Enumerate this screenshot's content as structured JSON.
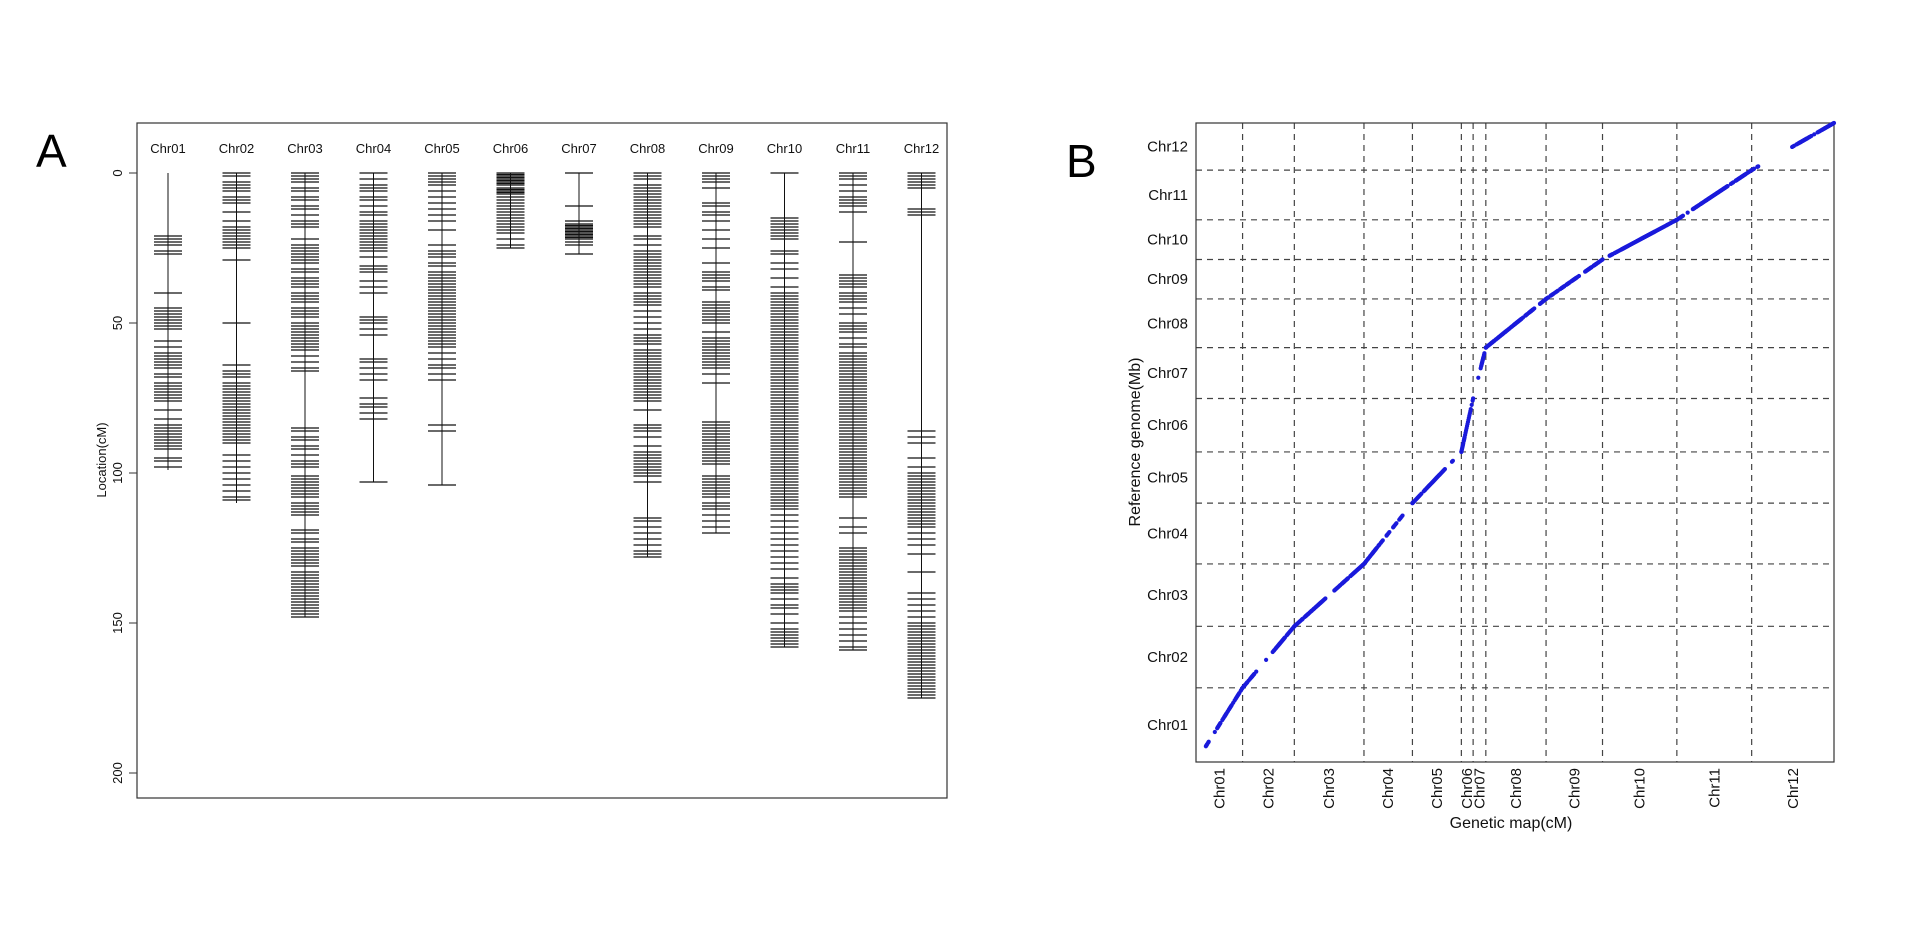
{
  "panels": {
    "a": "A",
    "b": "B"
  },
  "chart_data": [
    {
      "type": "linkage_map",
      "title": "",
      "ylabel": "Location(cM)",
      "ylim": [
        0,
        208
      ],
      "y_ticks": [
        0,
        50,
        100,
        150,
        200
      ],
      "y_inverted": true,
      "chromosomes": [
        {
          "name": "Chr01",
          "length": 99,
          "markers": [
            21,
            22,
            23,
            24,
            26,
            27,
            40,
            45,
            46,
            47,
            48,
            49,
            50,
            51,
            52,
            56,
            58,
            60,
            61,
            62,
            63,
            64,
            65,
            67,
            68,
            70,
            71,
            72,
            73,
            74,
            75,
            76,
            79,
            82,
            84,
            85,
            86,
            87,
            88,
            89,
            90,
            91,
            92,
            95,
            96,
            98
          ]
        },
        {
          "name": "Chr02",
          "length": 110,
          "markers": [
            0,
            1,
            3,
            4,
            5,
            6,
            8,
            9,
            10,
            13,
            16,
            18,
            19,
            20,
            21,
            22,
            23,
            24,
            25,
            29,
            50,
            64,
            66,
            67,
            68,
            70,
            71,
            72,
            73,
            74,
            75,
            76,
            77,
            78,
            79,
            80,
            81,
            82,
            83,
            84,
            85,
            86,
            87,
            88,
            89,
            90,
            94,
            96,
            98,
            100,
            102,
            104,
            106,
            108,
            109
          ]
        },
        {
          "name": "Chr03",
          "length": 148,
          "markers": [
            0,
            1,
            2,
            3,
            5,
            6,
            8,
            9,
            11,
            12,
            14,
            16,
            17,
            18,
            22,
            24,
            25,
            26,
            27,
            28,
            29,
            30,
            32,
            33,
            35,
            36,
            37,
            38,
            40,
            41,
            42,
            43,
            45,
            46,
            47,
            48,
            50,
            51,
            52,
            53,
            54,
            55,
            56,
            57,
            58,
            59,
            61,
            63,
            65,
            66,
            85,
            86,
            88,
            89,
            91,
            92,
            94,
            96,
            97,
            98,
            101,
            102,
            103,
            104,
            105,
            106,
            107,
            108,
            110,
            111,
            112,
            113,
            114,
            119,
            120,
            122,
            123,
            125,
            126,
            127,
            128,
            129,
            130,
            131,
            133,
            134,
            135,
            136,
            137,
            138,
            139,
            140,
            141,
            142,
            143,
            144,
            145,
            146,
            147,
            148
          ]
        },
        {
          "name": "Chr04",
          "length": 103,
          "markers": [
            0,
            2,
            4,
            5,
            6,
            8,
            9,
            11,
            13,
            14,
            16,
            17,
            18,
            19,
            20,
            21,
            22,
            23,
            24,
            25,
            26,
            28,
            31,
            32,
            33,
            36,
            38,
            40,
            48,
            49,
            50,
            52,
            54,
            62,
            63,
            65,
            67,
            69,
            75,
            77,
            78,
            80,
            82,
            103
          ]
        },
        {
          "name": "Chr05",
          "length": 104,
          "markers": [
            0,
            1,
            2,
            3,
            4,
            6,
            8,
            10,
            12,
            14,
            16,
            19,
            24,
            26,
            27,
            28,
            30,
            31,
            33,
            34,
            35,
            36,
            37,
            38,
            39,
            40,
            41,
            42,
            43,
            44,
            45,
            46,
            47,
            48,
            49,
            50,
            51,
            52,
            53,
            54,
            55,
            56,
            57,
            58,
            60,
            62,
            64,
            65,
            67,
            69,
            84,
            86,
            104
          ]
        },
        {
          "name": "Chr06",
          "length": 25,
          "markers": [
            0,
            0.5,
            1,
            1.5,
            2,
            2.5,
            3,
            3.5,
            4,
            5,
            5.5,
            6,
            6.5,
            7,
            8,
            9,
            10,
            11,
            12,
            13,
            14,
            15,
            16,
            17,
            18,
            19,
            20,
            22,
            24,
            25
          ]
        },
        {
          "name": "Chr07",
          "length": 27,
          "markers": [
            0,
            11,
            16,
            17,
            17.5,
            18,
            18.5,
            19,
            19.5,
            20,
            20.5,
            21,
            21.5,
            22,
            23,
            24,
            27
          ]
        },
        {
          "name": "Chr08",
          "length": 128,
          "markers": [
            0,
            1,
            2,
            4,
            5,
            6,
            7,
            8,
            9,
            10,
            11,
            12,
            13,
            14,
            15,
            16,
            17,
            18,
            21,
            22,
            24,
            26,
            27,
            28,
            29,
            30,
            31,
            32,
            33,
            34,
            35,
            36,
            37,
            38,
            40,
            41,
            42,
            43,
            44,
            46,
            48,
            50,
            52,
            54,
            55,
            56,
            57,
            59,
            60,
            61,
            62,
            63,
            64,
            65,
            66,
            67,
            68,
            69,
            70,
            71,
            72,
            73,
            74,
            75,
            76,
            79,
            84,
            85,
            86,
            88,
            91,
            93,
            94,
            95,
            96,
            97,
            98,
            99,
            100,
            101,
            103,
            115,
            116,
            118,
            120,
            122,
            124,
            126,
            127,
            128
          ]
        },
        {
          "name": "Chr09",
          "length": 120,
          "markers": [
            0,
            1,
            2,
            3,
            5,
            10,
            11,
            13,
            14,
            16,
            19,
            22,
            25,
            30,
            33,
            34,
            35,
            36,
            38,
            39,
            43,
            44,
            45,
            46,
            47,
            48,
            49,
            50,
            53,
            55,
            56,
            57,
            58,
            59,
            60,
            61,
            62,
            63,
            64,
            65,
            67,
            70,
            83,
            84,
            85,
            86,
            87,
            88,
            89,
            90,
            91,
            92,
            93,
            94,
            95,
            96,
            97,
            101,
            102,
            103,
            104,
            105,
            106,
            107,
            108,
            110,
            111,
            112,
            114,
            116,
            118,
            120
          ]
        },
        {
          "name": "Chr10",
          "length": 158,
          "markers": [
            0,
            15,
            16,
            17,
            18,
            19,
            20,
            21,
            22,
            26,
            27,
            30,
            32,
            35,
            38,
            40,
            41,
            42,
            43,
            44,
            45,
            46,
            47,
            48,
            49,
            50,
            51,
            52,
            53,
            54,
            55,
            56,
            57,
            58,
            59,
            60,
            61,
            62,
            63,
            64,
            65,
            66,
            67,
            68,
            69,
            70,
            71,
            72,
            73,
            74,
            75,
            76,
            77,
            78,
            79,
            80,
            81,
            82,
            83,
            84,
            85,
            86,
            87,
            88,
            89,
            90,
            91,
            92,
            93,
            94,
            95,
            96,
            97,
            98,
            99,
            100,
            101,
            102,
            103,
            104,
            105,
            106,
            107,
            108,
            109,
            110,
            111,
            112,
            114,
            116,
            118,
            120,
            122,
            124,
            126,
            128,
            130,
            132,
            135,
            137,
            138,
            139,
            140,
            142,
            144,
            145,
            147,
            150,
            152,
            153,
            154,
            155,
            156,
            157,
            158
          ]
        },
        {
          "name": "Chr11",
          "length": 159,
          "markers": [
            0,
            1,
            2,
            4,
            6,
            8,
            9,
            10,
            11,
            13,
            23,
            34,
            35,
            36,
            37,
            38,
            40,
            41,
            42,
            43,
            45,
            47,
            50,
            51,
            52,
            53,
            55,
            57,
            58,
            60,
            61,
            62,
            63,
            64,
            65,
            66,
            67,
            68,
            69,
            70,
            71,
            72,
            73,
            74,
            75,
            76,
            77,
            78,
            79,
            80,
            81,
            82,
            83,
            84,
            85,
            86,
            87,
            88,
            89,
            90,
            91,
            92,
            93,
            94,
            95,
            96,
            97,
            98,
            99,
            100,
            101,
            102,
            103,
            104,
            105,
            106,
            107,
            108,
            115,
            118,
            120,
            125,
            126,
            127,
            128,
            129,
            130,
            131,
            132,
            133,
            134,
            135,
            136,
            137,
            138,
            139,
            140,
            141,
            142,
            143,
            144,
            145,
            146,
            148,
            150,
            152,
            154,
            156,
            158,
            159
          ]
        },
        {
          "name": "Chr12",
          "length": 175,
          "markers": [
            0,
            1,
            2,
            3,
            4,
            5,
            12,
            13,
            14,
            86,
            88,
            90,
            95,
            98,
            100,
            101,
            102,
            103,
            104,
            105,
            106,
            107,
            108,
            109,
            110,
            111,
            112,
            113,
            114,
            115,
            116,
            117,
            118,
            120,
            122,
            124,
            127,
            133,
            140,
            142,
            144,
            146,
            148,
            150,
            151,
            152,
            153,
            154,
            155,
            156,
            157,
            158,
            159,
            160,
            161,
            162,
            163,
            164,
            165,
            166,
            167,
            168,
            169,
            170,
            171,
            172,
            173,
            174,
            175
          ]
        }
      ]
    },
    {
      "type": "scatter",
      "title": "",
      "xlabel": "Genetic map(cM)",
      "ylabel": "Reference genome(Mb)",
      "color": "#1a1adb",
      "chromosomes": [
        {
          "name": "Chr01",
          "x_len": 99,
          "y_len": 43.3
        },
        {
          "name": "Chr02",
          "x_len": 110,
          "y_len": 35.9
        },
        {
          "name": "Chr03",
          "x_len": 148,
          "y_len": 36.4
        },
        {
          "name": "Chr04",
          "x_len": 103,
          "y_len": 35.5
        },
        {
          "name": "Chr05",
          "x_len": 104,
          "y_len": 29.9
        },
        {
          "name": "Chr06",
          "x_len": 25,
          "y_len": 31.2
        },
        {
          "name": "Chr07",
          "x_len": 27,
          "y_len": 29.7
        },
        {
          "name": "Chr08",
          "x_len": 128,
          "y_len": 28.4
        },
        {
          "name": "Chr09",
          "x_len": 120,
          "y_len": 23.0
        },
        {
          "name": "Chr10",
          "x_len": 158,
          "y_len": 23.2
        },
        {
          "name": "Chr11",
          "x_len": 159,
          "y_len": 29.0
        },
        {
          "name": "Chr12",
          "x_len": 175,
          "y_len": 27.5
        }
      ]
    }
  ]
}
